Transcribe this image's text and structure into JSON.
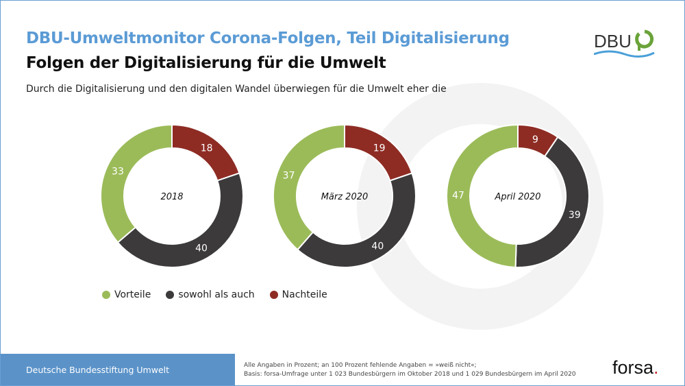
{
  "header": {
    "title": "DBU-Umweltmonitor Corona-Folgen, Teil Digitalisierung",
    "subtitle": "Folgen der Digitalisierung für die Umwelt",
    "question": "Durch die Digitalisierung und den digitalen Wandel überwiegen für die Umwelt eher die",
    "logo_text": "DBU"
  },
  "chart_data": {
    "type": "pie",
    "donut": true,
    "categories": [
      "Vorteile",
      "sowohl als auch",
      "Nachteile"
    ],
    "colors": {
      "Vorteile": "#9bbb59",
      "sowohl als auch": "#3c3a3b",
      "Nachteile": "#8e2c24"
    },
    "legend_position": "bottom-left",
    "charts": [
      {
        "label": "2018",
        "values": {
          "Vorteile": 33,
          "sowohl als auch": 40,
          "Nachteile": 18
        }
      },
      {
        "label": "März 2020",
        "values": {
          "Vorteile": 37,
          "sowohl als auch": 40,
          "Nachteile": 19
        }
      },
      {
        "label": "April 2020",
        "values": {
          "Vorteile": 47,
          "sowohl als auch": 39,
          "Nachteile": 9
        }
      }
    ]
  },
  "footer": {
    "organization": "Deutsche Bundesstiftung Umwelt",
    "note1": "Alle Angaben in Prozent; an 100 Prozent fehlende Angaben = »weiß nicht«;",
    "note2": "Basis: forsa-Umfrage unter 1 023 Bundesbürgern im Oktober 2018 und 1 029 Bundesbürgern im April 2020",
    "source_logo": "forsa",
    "source_logo_dot": "."
  }
}
